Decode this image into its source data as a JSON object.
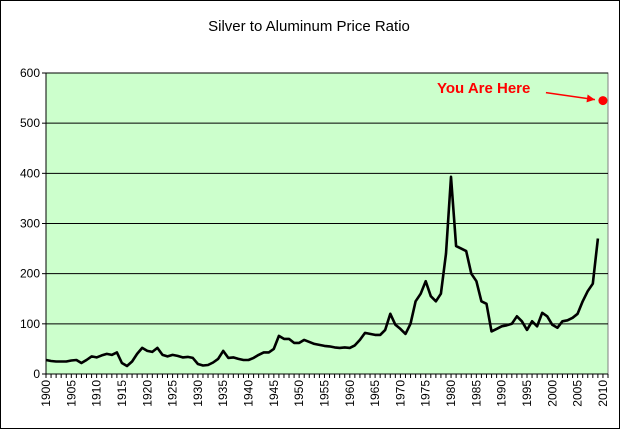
{
  "chart_data": {
    "type": "line",
    "title": "Silver to Aluminum Price Ratio",
    "xlabel": "",
    "ylabel": "",
    "xlim": [
      1900,
      2011
    ],
    "ylim": [
      0,
      600
    ],
    "yticks": [
      0,
      100,
      200,
      300,
      400,
      500,
      600
    ],
    "xticks": [
      1900,
      1905,
      1910,
      1915,
      1920,
      1925,
      1930,
      1935,
      1940,
      1945,
      1950,
      1955,
      1960,
      1965,
      1970,
      1975,
      1980,
      1985,
      1990,
      1995,
      2000,
      2005,
      2010
    ],
    "grid": "horizontal",
    "plot_background": "#ccffcc",
    "line_color": "#000000",
    "marker_color": "#ff0000",
    "series": [
      {
        "name": "Silver to Aluminum Price Ratio",
        "x": [
          1900,
          1901,
          1902,
          1903,
          1904,
          1905,
          1906,
          1907,
          1908,
          1909,
          1910,
          1911,
          1912,
          1913,
          1914,
          1915,
          1916,
          1917,
          1918,
          1919,
          1920,
          1921,
          1922,
          1923,
          1924,
          1925,
          1926,
          1927,
          1928,
          1929,
          1930,
          1931,
          1932,
          1933,
          1934,
          1935,
          1936,
          1937,
          1938,
          1939,
          1940,
          1941,
          1942,
          1943,
          1944,
          1945,
          1946,
          1947,
          1948,
          1949,
          1950,
          1951,
          1952,
          1953,
          1954,
          1955,
          1956,
          1957,
          1958,
          1959,
          1960,
          1961,
          1962,
          1963,
          1964,
          1965,
          1966,
          1967,
          1968,
          1969,
          1970,
          1971,
          1972,
          1973,
          1974,
          1975,
          1976,
          1977,
          1978,
          1979,
          1980,
          1981,
          1982,
          1983,
          1984,
          1985,
          1986,
          1987,
          1988,
          1989,
          1990,
          1991,
          1992,
          1993,
          1994,
          1995,
          1996,
          1997,
          1998,
          1999,
          2000,
          2001,
          2002,
          2003,
          2004,
          2005,
          2006,
          2007,
          2008,
          2009
        ],
        "values": [
          28,
          26,
          25,
          25,
          25,
          27,
          28,
          22,
          28,
          35,
          33,
          37,
          40,
          38,
          43,
          22,
          16,
          25,
          40,
          52,
          46,
          44,
          52,
          38,
          35,
          38,
          36,
          33,
          34,
          32,
          20,
          17,
          18,
          23,
          30,
          46,
          32,
          33,
          30,
          28,
          28,
          32,
          38,
          43,
          43,
          50,
          76,
          70,
          70,
          62,
          62,
          68,
          64,
          60,
          58,
          56,
          55,
          53,
          52,
          53,
          52,
          57,
          68,
          82,
          80,
          78,
          78,
          88,
          120,
          98,
          90,
          80,
          100,
          145,
          160,
          185,
          155,
          145,
          160,
          240,
          393,
          255,
          250,
          245,
          200,
          185,
          145,
          140,
          85,
          90,
          95,
          97,
          100,
          115,
          105,
          88,
          105,
          95,
          122,
          115,
          98,
          92,
          105,
          107,
          112,
          120,
          145,
          165,
          180,
          270
        ]
      }
    ],
    "annotations": [
      {
        "text": "You Are Here",
        "x": 2010,
        "y": 545,
        "color": "#ff0000"
      }
    ]
  }
}
